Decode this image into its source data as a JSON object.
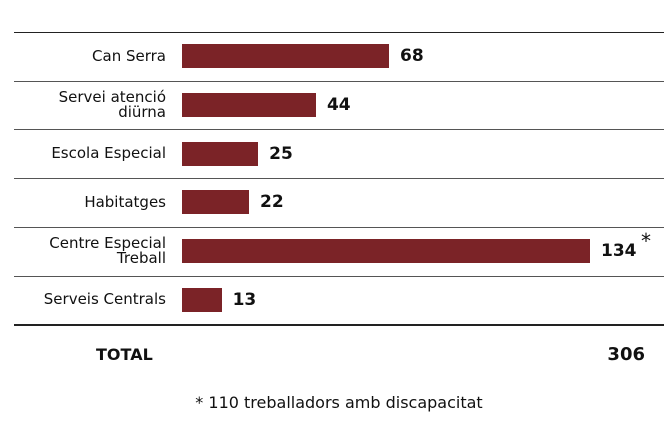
{
  "chart_data": {
    "type": "bar",
    "categories": [
      "Can Serra",
      "Servei atenció diürna",
      "Escola Especial",
      "Habitatges",
      "Centre Especial Treball",
      "Serveis Centrals"
    ],
    "values": [
      68,
      44,
      25,
      22,
      134,
      13
    ],
    "value_notes": [
      null,
      null,
      null,
      null,
      "*",
      null
    ],
    "color": "#7b2327",
    "total_label": "TOTAL",
    "total": 306,
    "footnote": "* 110 treballadors amb discapacitat"
  }
}
